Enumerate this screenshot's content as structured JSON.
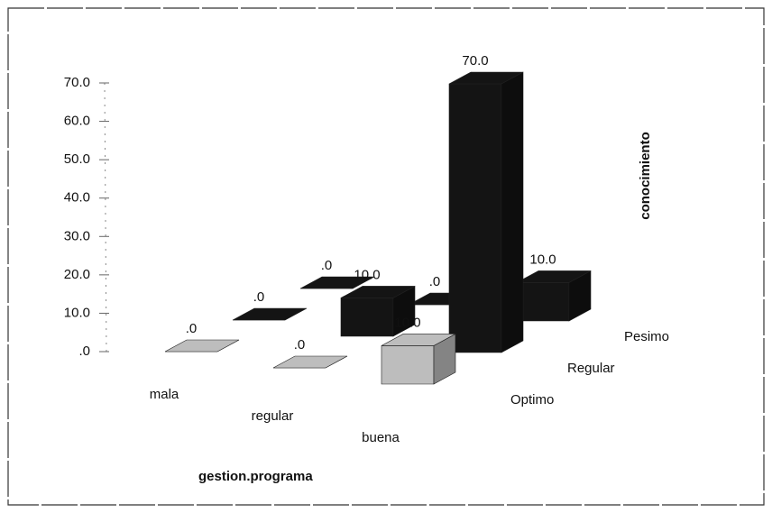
{
  "chart_data": {
    "type": "bar3d",
    "categories": [
      "mala",
      "regular",
      "buena"
    ],
    "x_label": "gestion.programa",
    "z_label": "conocimiento",
    "series": [
      {
        "name": "Optimo",
        "color": "#bdbdbd",
        "values": [
          0,
          0,
          10
        ],
        "value_labels": [
          ".0",
          ".0",
          "10.0"
        ]
      },
      {
        "name": "Regular",
        "color": "#141414",
        "values": [
          0,
          10,
          70
        ],
        "value_labels": [
          ".0",
          "10.0",
          "70.0"
        ]
      },
      {
        "name": "Pesimo",
        "color": "#141414",
        "values": [
          0,
          0,
          10
        ],
        "value_labels": [
          ".0",
          ".0",
          "10.0"
        ]
      }
    ],
    "ylim": [
      0,
      70
    ],
    "yticks": [
      {
        "value": 0,
        "label": ".0"
      },
      {
        "value": 10,
        "label": "10.0"
      },
      {
        "value": 20,
        "label": "20.0"
      },
      {
        "value": 30,
        "label": "30.0"
      },
      {
        "value": 40,
        "label": "40.0"
      },
      {
        "value": 50,
        "label": "50.0"
      },
      {
        "value": 60,
        "label": "60.0"
      },
      {
        "value": 70,
        "label": "70.0"
      }
    ]
  }
}
